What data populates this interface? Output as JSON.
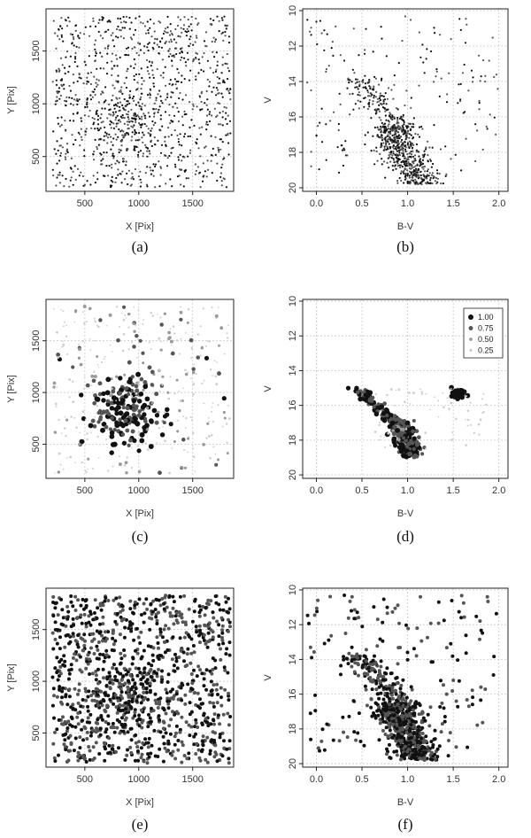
{
  "figure": {
    "panels": [
      "a",
      "b",
      "c",
      "d",
      "e",
      "f"
    ]
  },
  "chart_data": [
    {
      "id": "a",
      "caption": "(a)",
      "type": "scatter",
      "variant": "spatial",
      "xlabel": "X [Pix]",
      "ylabel": "Y [Pix]",
      "xlim": [
        140,
        1880
      ],
      "ylim": [
        170,
        1900
      ],
      "xticks": [
        500,
        1000,
        1500
      ],
      "yticks": [
        500,
        1000,
        1500
      ],
      "grid": true,
      "style": "uniform-small",
      "seed": 11
    },
    {
      "id": "b",
      "caption": "(b)",
      "type": "scatter",
      "variant": "cmd",
      "xlabel": "B-V",
      "ylabel": "V",
      "xlim": [
        -0.15,
        2.1
      ],
      "ylim": [
        20.2,
        9.9
      ],
      "xticks": [
        0.0,
        0.5,
        1.0,
        1.5,
        2.0
      ],
      "xticklabels": [
        "0.0",
        "0.5",
        "1.0",
        "1.5",
        "2.0"
      ],
      "yticks": [
        10,
        12,
        14,
        16,
        18,
        20
      ],
      "grid": true,
      "style": "uniform-small",
      "seed": 22
    },
    {
      "id": "c",
      "caption": "(c)",
      "type": "scatter",
      "variant": "spatial",
      "xlabel": "X [Pix]",
      "ylabel": "Y [Pix]",
      "xlim": [
        140,
        1880
      ],
      "ylim": [
        170,
        1900
      ],
      "xticks": [
        500,
        1000,
        1500
      ],
      "yticks": [
        500,
        1000,
        1500
      ],
      "grid": true,
      "style": "membership",
      "seed": 33
    },
    {
      "id": "d",
      "caption": "(d)",
      "type": "scatter",
      "variant": "cmd",
      "xlabel": "B-V",
      "ylabel": "V",
      "xlim": [
        -0.15,
        2.1
      ],
      "ylim": [
        20.2,
        9.9
      ],
      "xticks": [
        0.0,
        0.5,
        1.0,
        1.5,
        2.0
      ],
      "xticklabels": [
        "0.0",
        "0.5",
        "1.0",
        "1.5",
        "2.0"
      ],
      "yticks": [
        10,
        12,
        14,
        16,
        18,
        20
      ],
      "grid": true,
      "style": "membership",
      "seed": 44,
      "legend": {
        "placement": "top-right",
        "entries": [
          {
            "label": "1.00",
            "value": 1.0
          },
          {
            "label": "0.75",
            "value": 0.75
          },
          {
            "label": "0.50",
            "value": 0.5
          },
          {
            "label": "0.25",
            "value": 0.25
          }
        ]
      }
    },
    {
      "id": "e",
      "caption": "(e)",
      "type": "scatter",
      "variant": "spatial",
      "xlabel": "X [Pix]",
      "ylabel": "Y [Pix]",
      "xlim": [
        140,
        1880
      ],
      "ylim": [
        170,
        1900
      ],
      "xticks": [
        500,
        1000,
        1500
      ],
      "yticks": [
        500,
        1000,
        1500
      ],
      "grid": true,
      "style": "uniform-large",
      "seed": 55
    },
    {
      "id": "f",
      "caption": "(f)",
      "type": "scatter",
      "variant": "cmd",
      "xlabel": "B-V",
      "ylabel": "V",
      "xlim": [
        -0.15,
        2.1
      ],
      "ylim": [
        20.2,
        9.9
      ],
      "xticks": [
        0.0,
        0.5,
        1.0,
        1.5,
        2.0
      ],
      "xticklabels": [
        "0.0",
        "0.5",
        "1.0",
        "1.5",
        "2.0"
      ],
      "yticks": [
        10,
        12,
        14,
        16,
        18,
        20
      ],
      "grid": true,
      "style": "uniform-large",
      "seed": 66
    }
  ],
  "colors": {
    "frame": "#222222",
    "grid": "#c8c8c8",
    "point_dark": "#111111",
    "point_mid": "#555555",
    "point_light": "#9a9a9a"
  }
}
